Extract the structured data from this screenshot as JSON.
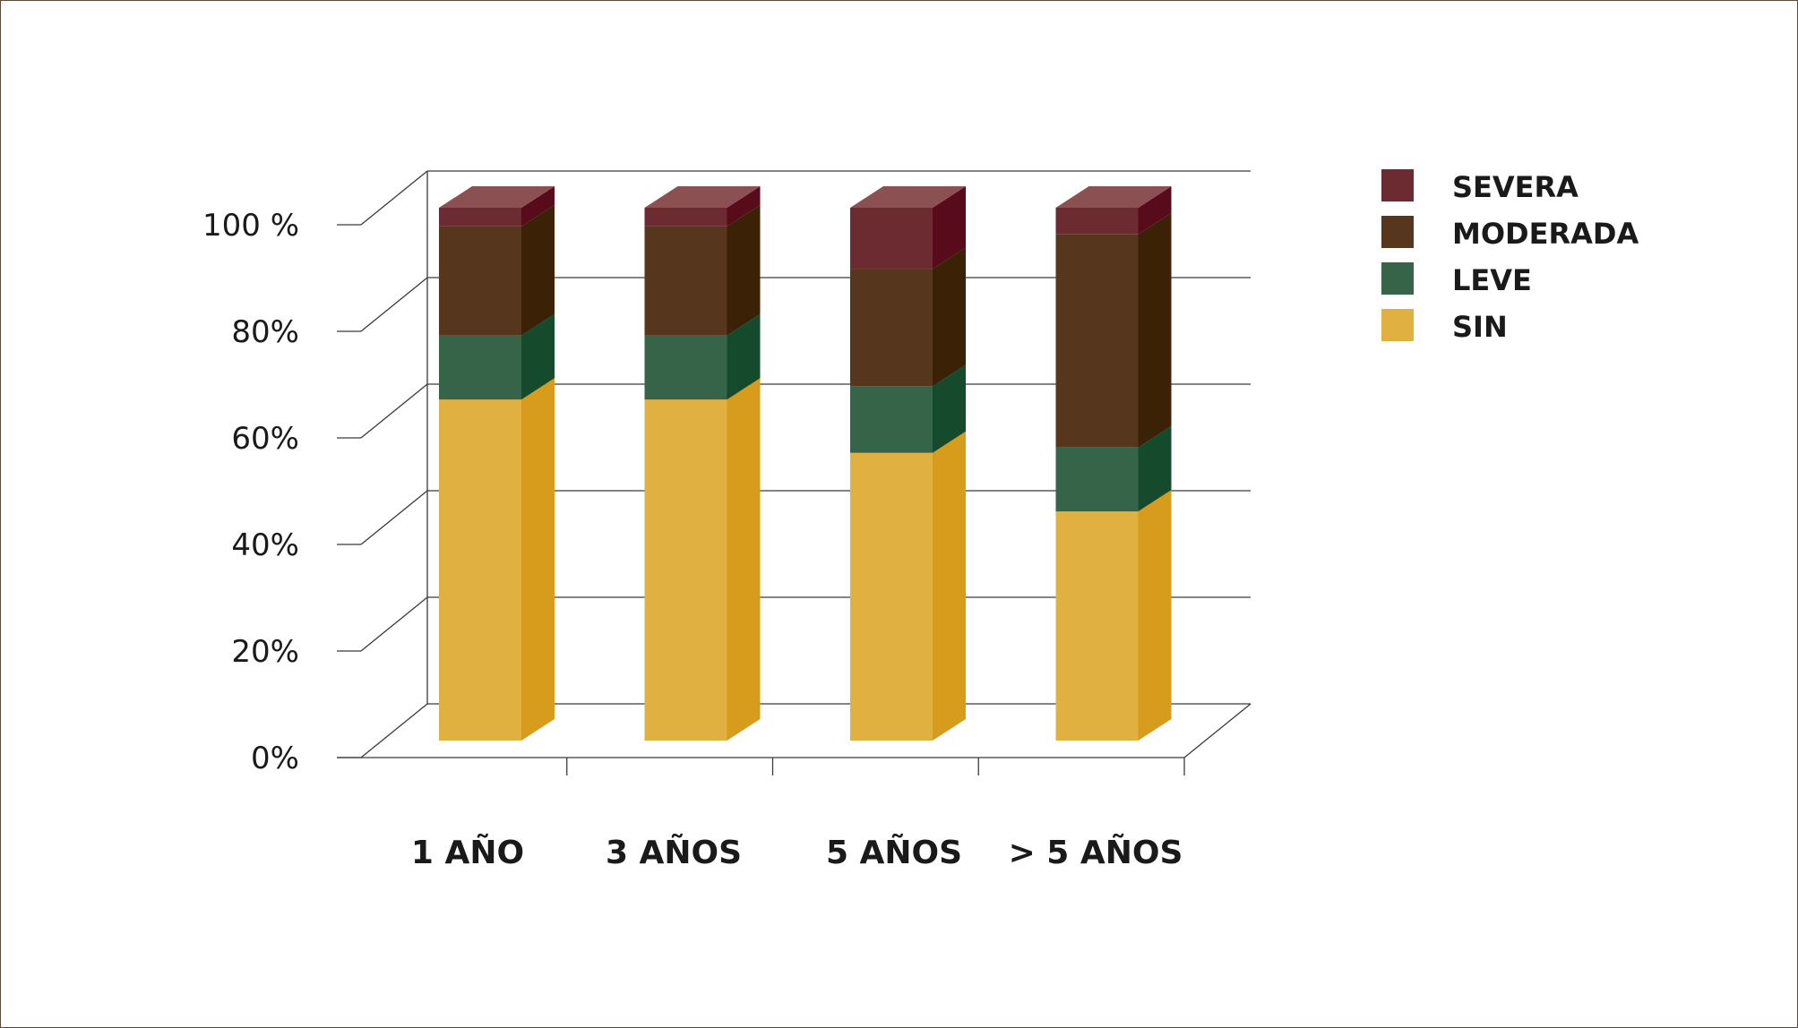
{
  "chart_data": {
    "type": "bar",
    "stacked": true,
    "three_d": true,
    "categories": [
      "1 AÑO",
      "3 AÑOS",
      "5 AÑOS",
      "> 5 AÑOS"
    ],
    "series": [
      {
        "name": "SIN",
        "values": [
          64,
          64,
          54,
          43
        ],
        "color": "#e0b040",
        "side_color": "#d89c1c",
        "top_color": "#e8c46a"
      },
      {
        "name": "LEVE",
        "values": [
          12,
          12,
          12.5,
          12
        ],
        "color": "#366449",
        "side_color": "#164a2c",
        "top_color": "#4a7a5c"
      },
      {
        "name": "MODERADA",
        "values": [
          20.5,
          20.5,
          22,
          40
        ],
        "color": "#56371e",
        "side_color": "#3b2106",
        "top_color": "#6e4c2e"
      },
      {
        "name": "SEVERA",
        "values": [
          3.5,
          3.5,
          11.5,
          5
        ],
        "color": "#6c2a31",
        "side_color": "#570b1b",
        "top_color": "#8a5052"
      }
    ],
    "y_ticks": [
      "0%",
      "20%",
      "40%",
      "60%",
      "80%",
      "100 %"
    ],
    "ylim": [
      0,
      100
    ],
    "grid": true,
    "legend_position": "right",
    "legend_order": [
      "SEVERA",
      "MODERADA",
      "LEVE",
      "SIN"
    ],
    "title": "",
    "xlabel": "",
    "ylabel": ""
  }
}
